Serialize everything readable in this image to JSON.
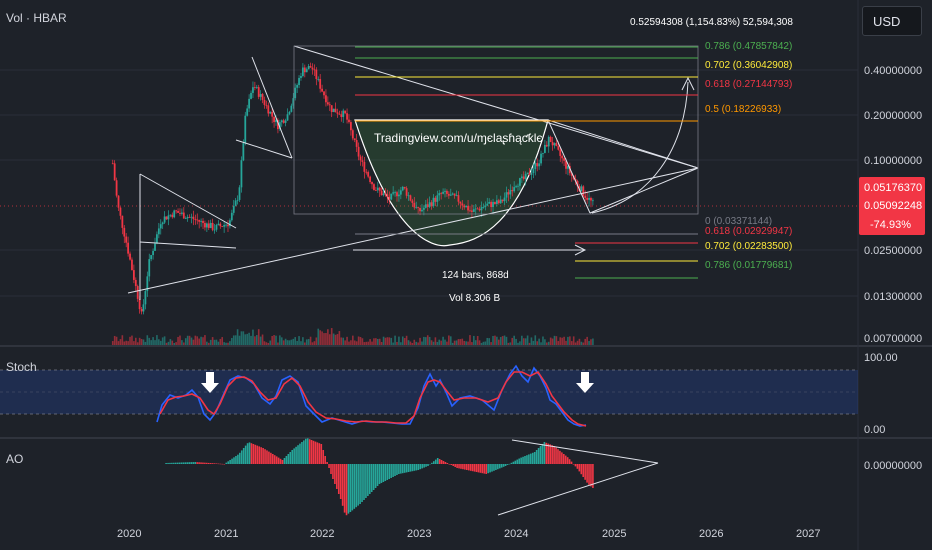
{
  "header": {
    "symbol": "Vol · HBAR",
    "measure_readout": "0.52594308 (1,154.83%) 52,594,308",
    "currency_button": "USD"
  },
  "price_axis": {
    "ticks": [
      "0.40000000",
      "0.20000000",
      "0.10000000",
      "0.02500000",
      "0.01300000",
      "0.00700000"
    ],
    "last_price": "0.05176370",
    "second_price": "0.05092248",
    "change_pct": "-74.93%",
    "last_price_color": "#f23645"
  },
  "fib_upper": [
    {
      "label": "0.786 (0.47857842)",
      "color": "#4caf50"
    },
    {
      "label": "0.702 (0.36042908)",
      "color": "#ffeb3b"
    },
    {
      "label": "0.618 (0.27144793)",
      "color": "#f23645"
    },
    {
      "label": "0.5 (0.18226933)",
      "color": "#ff9800"
    }
  ],
  "fib_lower": [
    {
      "label": "0 (0.03371144)",
      "color": "#787b86"
    },
    {
      "label": "0.618 (0.02929947)",
      "color": "#f23645"
    },
    {
      "label": "0.702 (0.02283500)",
      "color": "#ffeb3b"
    },
    {
      "label": "0.786 (0.01779681)",
      "color": "#4caf50"
    }
  ],
  "annotations": {
    "watermark": "Tradingview.com/u/ɱєlaʂɦąƈƙlє",
    "bars_info": "124 bars, 868d",
    "vol_info": "Vol 8.306 B"
  },
  "stoch": {
    "title": "Stoch",
    "ticks": [
      "100.00",
      "0.00"
    ],
    "k_color": "#2962ff",
    "d_color": "#f23645",
    "band_color": "#2962ff"
  },
  "ao": {
    "title": "AO",
    "tick": "0.00000000",
    "up_color": "#26a69a",
    "down_color": "#f23645"
  },
  "time_axis": {
    "labels": [
      "2020",
      "2021",
      "2022",
      "2023",
      "2024",
      "2025",
      "2026",
      "2027"
    ]
  },
  "chart_data": {
    "type": "candlestick",
    "symbol": "HBAR",
    "scale": "log",
    "x_unit": "year",
    "price_points": [
      [
        2019.75,
        0.095
      ],
      [
        2019.8,
        0.05
      ],
      [
        2019.88,
        0.03
      ],
      [
        2020.0,
        0.013
      ],
      [
        2020.05,
        0.009
      ],
      [
        2020.12,
        0.02
      ],
      [
        2020.25,
        0.04
      ],
      [
        2020.4,
        0.045
      ],
      [
        2020.6,
        0.04
      ],
      [
        2020.8,
        0.035
      ],
      [
        2020.95,
        0.038
      ],
      [
        2021.05,
        0.06
      ],
      [
        2021.12,
        0.2
      ],
      [
        2021.2,
        0.32
      ],
      [
        2021.3,
        0.25
      ],
      [
        2021.45,
        0.17
      ],
      [
        2021.55,
        0.2
      ],
      [
        2021.7,
        0.4
      ],
      [
        2021.8,
        0.42
      ],
      [
        2021.9,
        0.3
      ],
      [
        2022.0,
        0.22
      ],
      [
        2022.15,
        0.2
      ],
      [
        2022.3,
        0.1
      ],
      [
        2022.45,
        0.065
      ],
      [
        2022.6,
        0.055
      ],
      [
        2022.75,
        0.065
      ],
      [
        2022.9,
        0.045
      ],
      [
        2023.0,
        0.05
      ],
      [
        2023.15,
        0.06
      ],
      [
        2023.3,
        0.055
      ],
      [
        2023.45,
        0.045
      ],
      [
        2023.6,
        0.05
      ],
      [
        2023.75,
        0.052
      ],
      [
        2023.9,
        0.07
      ],
      [
        2024.0,
        0.075
      ],
      [
        2024.15,
        0.1
      ],
      [
        2024.25,
        0.14
      ],
      [
        2024.35,
        0.11
      ],
      [
        2024.5,
        0.075
      ],
      [
        2024.62,
        0.058
      ],
      [
        2024.7,
        0.051
      ]
    ]
  }
}
